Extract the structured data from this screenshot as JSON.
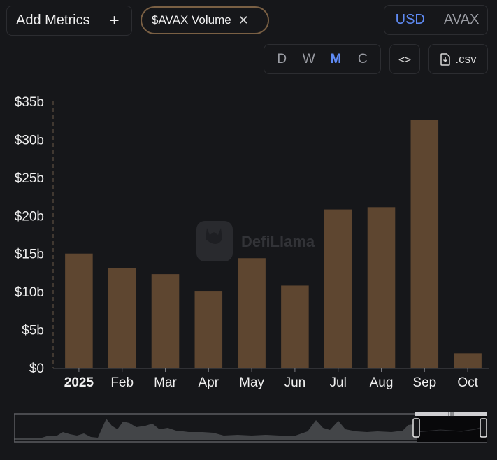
{
  "toolbar": {
    "add_metrics_label": "Add Metrics",
    "add_icon": "plus-icon",
    "metric_chip_label": "$AVAX Volume",
    "close_icon": "close-icon",
    "currency_options": [
      "USD",
      "AVAX"
    ],
    "currency_selected": "USD",
    "interval_options": [
      "D",
      "W",
      "M",
      "C"
    ],
    "interval_selected": "M",
    "embed_label": "<>",
    "csv_label": ".csv",
    "download_icon": "download-icon"
  },
  "watermark": "DefiLlama",
  "colors": {
    "bar": "#5e4630",
    "accent": "#5f8bf5",
    "chip_border": "#7a6044",
    "background": "#16171a"
  },
  "chart_data": {
    "type": "bar",
    "categories": [
      "2025",
      "Feb",
      "Mar",
      "Apr",
      "May",
      "Jun",
      "Jul",
      "Aug",
      "Sep",
      "Oct"
    ],
    "series": [
      {
        "values": [
          15.0,
          13.1,
          12.3,
          10.1,
          14.4,
          10.8,
          20.8,
          21.1,
          32.6,
          1.9
        ]
      }
    ],
    "y_unit": "USD billions",
    "ylim": [
      0,
      35
    ],
    "yticks": [
      "$0",
      "$5b",
      "$10b",
      "$15b",
      "$20b",
      "$25b",
      "$30b",
      "$35b"
    ],
    "ytick_values": [
      0,
      5,
      10,
      15,
      20,
      25,
      30,
      35
    ],
    "grid": false,
    "title": "",
    "xlabel": "",
    "ylabel": ""
  }
}
